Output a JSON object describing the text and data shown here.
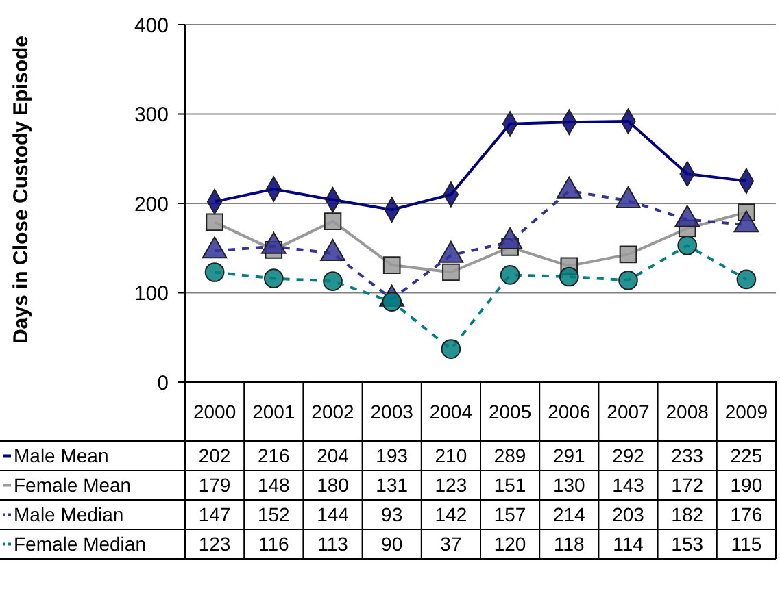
{
  "chart_data": {
    "type": "line",
    "ylabel": "Days in Close Custody Episode",
    "categories": [
      "2000",
      "2001",
      "2002",
      "2003",
      "2004",
      "2005",
      "2006",
      "2007",
      "2008",
      "2009"
    ],
    "ylim": [
      0,
      400
    ],
    "yticks": [
      0,
      100,
      200,
      300,
      400
    ],
    "grid": "y",
    "legend": "bottom",
    "data_labels": true,
    "series": [
      {
        "name": "Male Mean",
        "color": "#000080",
        "marker": "diamond",
        "line_style": "solid",
        "values": [
          202,
          216,
          204,
          193,
          210,
          289,
          291,
          292,
          233,
          225
        ]
      },
      {
        "name": "Female Mean",
        "color": "#999999",
        "marker": "square",
        "line_style": "solid",
        "values": [
          179,
          148,
          180,
          131,
          123,
          151,
          130,
          143,
          172,
          190
        ]
      },
      {
        "name": "Male Median",
        "color": "#333399",
        "marker": "triangle",
        "line_style": "dashed",
        "values": [
          147,
          152,
          144,
          93,
          142,
          157,
          214,
          203,
          182,
          176
        ]
      },
      {
        "name": "Female Median",
        "color": "#008080",
        "marker": "circle",
        "line_style": "dashed",
        "values": [
          123,
          116,
          113,
          90,
          37,
          120,
          118,
          114,
          153,
          115
        ]
      }
    ]
  }
}
